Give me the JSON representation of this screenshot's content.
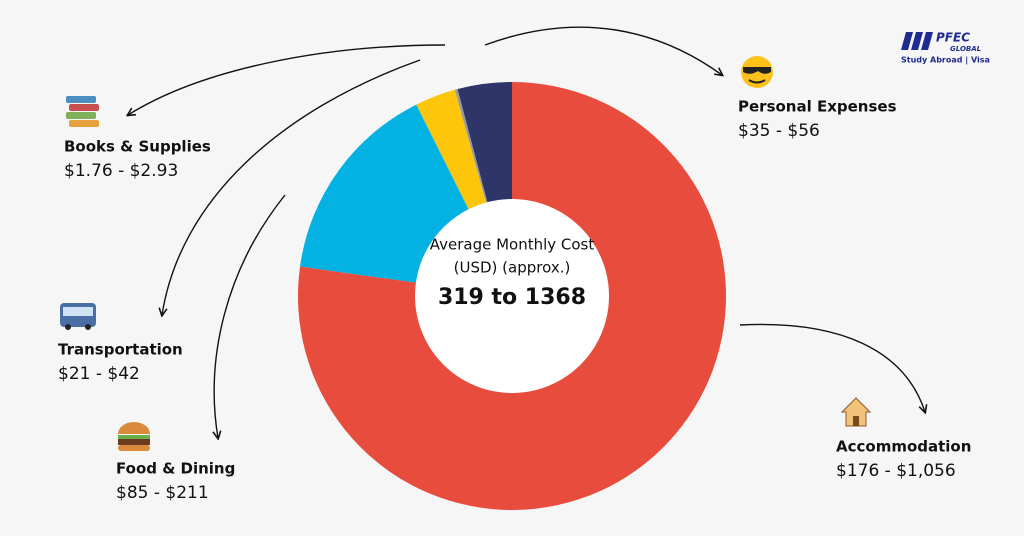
{
  "chart_data": {
    "type": "donut",
    "center_title": [
      "Average Monthly Cost",
      "(USD) (approx.)"
    ],
    "center_value": "319 to 1368",
    "categories": [
      "Accommodation",
      "Food & Dining",
      "Transportation",
      "Books & Supplies",
      "Personal Expenses"
    ],
    "min_values": [
      176,
      85,
      21,
      1.76,
      35
    ],
    "values": [
      1056,
      211,
      42,
      2.93,
      56
    ],
    "value_labels": [
      "$176 - $1,056",
      "$85 - $211",
      "$21 - $42",
      "$1.76 - $2.93",
      "$35 - $56"
    ],
    "colors": [
      "#e84c3d",
      "#03b1e3",
      "#fec60b",
      "#9b9b9b",
      "#2e3568"
    ]
  },
  "logo": {
    "name": "PFEC",
    "sub": "GLOBAL",
    "tagline": "Study Abroad | Visa"
  }
}
